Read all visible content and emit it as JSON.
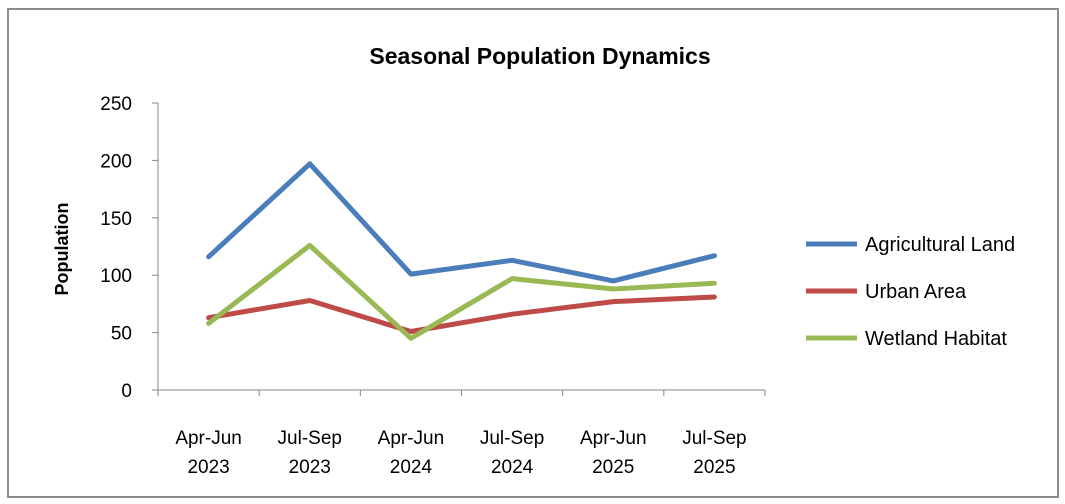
{
  "chart_data": {
    "type": "line",
    "title": "Seasonal Population Dynamics",
    "ylabel": "Population",
    "xlabel": "",
    "categories": [
      [
        "Apr-Jun",
        "2023"
      ],
      [
        "Jul-Sep",
        "2023"
      ],
      [
        "Apr-Jun",
        "2024"
      ],
      [
        "Jul-Sep",
        "2024"
      ],
      [
        "Apr-Jun",
        "2025"
      ],
      [
        "Jul-Sep",
        "2025"
      ]
    ],
    "ylim": [
      0,
      250
    ],
    "yticks": [
      "0",
      "50",
      "100",
      "150",
      "200",
      "250"
    ],
    "grid": false,
    "legend_position": "right",
    "series": [
      {
        "name": "Agricultural Land",
        "color": "#4a7ebb",
        "values": [
          116,
          197,
          101,
          113,
          95,
          117
        ]
      },
      {
        "name": "Urban Area",
        "color": "#be4b48",
        "values": [
          63,
          78,
          51,
          66,
          77,
          81
        ]
      },
      {
        "name": "Wetland Habitat",
        "color": "#98b954",
        "values": [
          58,
          126,
          45,
          97,
          88,
          93
        ]
      }
    ]
  }
}
